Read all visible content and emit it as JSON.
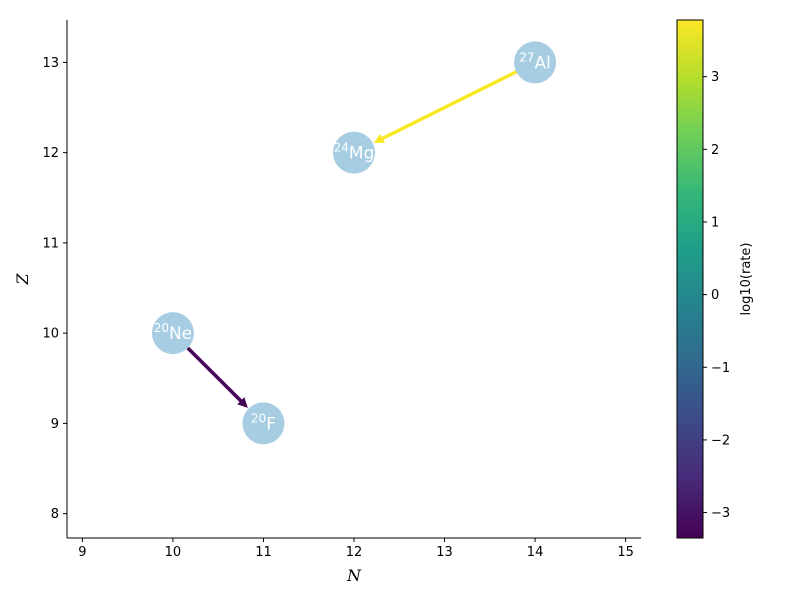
{
  "chart_data": {
    "type": "scatter",
    "xlabel": "N",
    "ylabel": "Z",
    "xlim": [
      8.83,
      15.17
    ],
    "ylim": [
      7.73,
      13.47
    ],
    "xticks": [
      9,
      10,
      11,
      12,
      13,
      14,
      15
    ],
    "yticks": [
      8,
      9,
      10,
      11,
      12,
      13
    ],
    "nodes": [
      {
        "name": "27Al",
        "mass": "27",
        "symbol": "Al",
        "N": 14,
        "Z": 13
      },
      {
        "name": "24Mg",
        "mass": "24",
        "symbol": "Mg",
        "N": 12,
        "Z": 12
      },
      {
        "name": "20Ne",
        "mass": "20",
        "symbol": "Ne",
        "N": 10,
        "Z": 10
      },
      {
        "name": "20F",
        "mass": "20",
        "symbol": "F",
        "N": 11,
        "Z": 9
      }
    ],
    "links": [
      {
        "from": "27Al",
        "to": "24Mg",
        "log10_rate": 3.75
      },
      {
        "from": "20Ne",
        "to": "20F",
        "log10_rate": -3.35
      }
    ],
    "colorbar": {
      "label": "log10(rate)",
      "colormap": "viridis",
      "range": [
        -3.35,
        3.78
      ],
      "ticks": [
        -3,
        -2,
        -1,
        0,
        1,
        2,
        3
      ]
    },
    "node_color": "#a6cde2",
    "grid": false
  }
}
